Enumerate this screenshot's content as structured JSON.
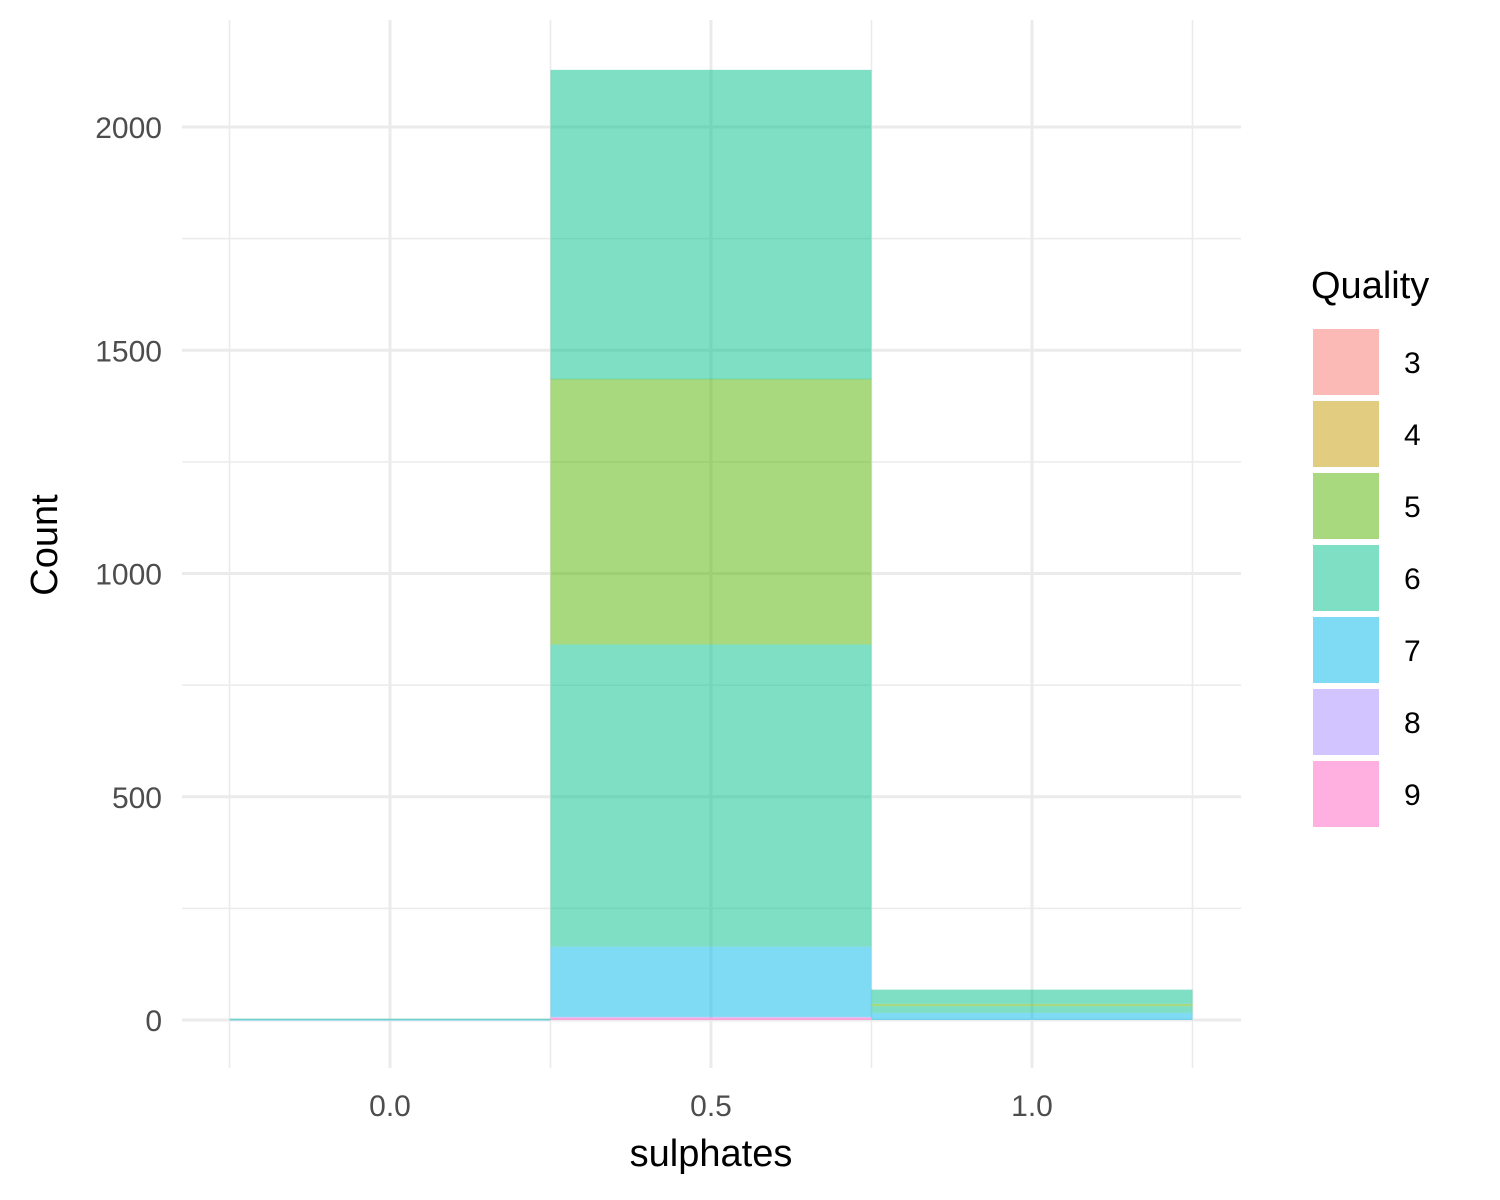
{
  "chart_data": {
    "type": "bar",
    "stacked": true,
    "xlabel": "sulphates",
    "ylabel": "Count",
    "xlim": [
      -0.25,
      1.25
    ],
    "ylim": [
      0,
      2230
    ],
    "x_ticks": [
      0.0,
      0.5,
      1.0
    ],
    "x_tick_labels": [
      "0.0",
      "0.5",
      "1.0"
    ],
    "y_ticks": [
      0,
      500,
      1000,
      1500,
      2000
    ],
    "y_tick_labels": [
      "0",
      "500",
      "1000",
      "1500",
      "2000"
    ],
    "grid": true,
    "bin_width": 0.5,
    "bins": [
      {
        "xmin": -0.25,
        "xmax": 0.25,
        "center": 0.0
      },
      {
        "xmin": 0.25,
        "xmax": 0.75,
        "center": 0.5
      },
      {
        "xmin": 0.75,
        "xmax": 1.25,
        "center": 1.0
      }
    ],
    "legend": {
      "title": "Quality",
      "position": "right"
    },
    "series": [
      {
        "name": "9",
        "color": "#FF61C3",
        "values": [
          0,
          5,
          0
        ]
      },
      {
        "name": "8",
        "color": "#A58AFF",
        "values": [
          0,
          2,
          0
        ]
      },
      {
        "name": "7",
        "color": "#00B8E7",
        "values": [
          1,
          157,
          16
        ]
      },
      {
        "name": "6",
        "color": "#00C08B",
        "values": [
          2,
          677,
          15
        ]
      },
      {
        "name": "5",
        "color": "#53B400",
        "values": [
          0,
          595,
          5
        ]
      },
      {
        "name": "4",
        "color": "#C49A00",
        "values": [
          0,
          0,
          0
        ]
      },
      {
        "name": "3",
        "color": "#F8766D",
        "values": [
          0,
          0,
          0
        ]
      }
    ],
    "overlay": [
      {
        "name": "6",
        "color": "#00C08B",
        "bin_index": 1,
        "y0": 1435,
        "y1": 2128
      },
      {
        "name": "6",
        "color": "#00C08B",
        "bin_index": 2,
        "y0": 36,
        "y1": 68
      }
    ],
    "legend_order": [
      "3",
      "4",
      "5",
      "6",
      "7",
      "8",
      "9"
    ],
    "legend_colors": {
      "3": "#F8766D",
      "4": "#C49A00",
      "5": "#53B400",
      "6": "#00C08B",
      "7": "#00B8E7",
      "8": "#A58AFF",
      "9": "#FF61C3"
    },
    "alpha": 0.5
  }
}
